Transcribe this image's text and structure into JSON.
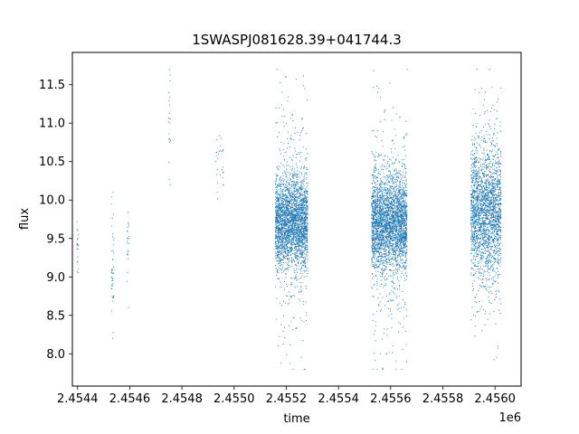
{
  "chart_data": {
    "type": "scatter",
    "title": "1SWASPJ081628.39+041744.3",
    "xlabel": "time",
    "ylabel": "flux",
    "x_offset_label": "1e6",
    "xlim": [
      2454380,
      2456100
    ],
    "ylim": [
      7.58,
      11.92
    ],
    "x_ticks": [
      2454400,
      2454600,
      2454800,
      2455000,
      2455200,
      2455400,
      2455600,
      2455800,
      2456000
    ],
    "x_tick_labels": [
      "2.4544",
      "2.4546",
      "2.4548",
      "2.4550",
      "2.4552",
      "2.4554",
      "2.4556",
      "2.4558",
      "2.4560"
    ],
    "y_ticks": [
      8.0,
      8.5,
      9.0,
      9.5,
      10.0,
      10.5,
      11.0,
      11.5
    ],
    "y_tick_labels": [
      "8.0",
      "8.5",
      "9.0",
      "9.5",
      "10.0",
      "10.5",
      "11.0",
      "11.5"
    ],
    "grid": false,
    "legend": "none",
    "series": [
      {
        "color": "#1f77b4",
        "x": [
          2454400,
          2454400,
          2454401,
          2454402,
          2454530,
          2454531,
          2454532,
          2454533,
          2454534,
          2454535,
          2454536,
          2454540,
          2454590,
          2454592,
          2454595,
          2454750,
          2454752,
          2454755,
          2454930,
          2454935,
          2454950,
          2455160,
          2455165,
          2455170,
          2455175,
          2455180,
          2455185,
          2455190,
          2455195,
          2455200,
          2455210,
          2455220,
          2455230,
          2455240,
          2455250,
          2455260,
          2455270,
          2455280,
          2455160,
          2455170,
          2455180,
          2455190,
          2455200,
          2455210,
          2455220,
          2455230,
          2455240,
          2455250,
          2455260,
          2455270,
          2455280,
          2455165,
          2455175,
          2455185,
          2455195,
          2455205,
          2455215,
          2455225,
          2455235,
          2455245,
          2455255,
          2455265,
          2455275,
          2455530,
          2455540,
          2455550,
          2455560,
          2455570,
          2455580,
          2455590,
          2455600,
          2455610,
          2455620,
          2455630,
          2455640,
          2455650,
          2455660,
          2455530,
          2455540,
          2455550,
          2455560,
          2455570,
          2455580,
          2455590,
          2455600,
          2455610,
          2455620,
          2455630,
          2455640,
          2455650,
          2455535,
          2455545,
          2455555,
          2455565,
          2455575,
          2455585,
          2455595,
          2455605,
          2455615,
          2455625,
          2455635,
          2455645,
          2455910,
          2455920,
          2455930,
          2455940,
          2455950,
          2455960,
          2455970,
          2455980,
          2455990,
          2456000,
          2456010,
          2455910,
          2455920,
          2455930,
          2455940,
          2455950,
          2455960,
          2455970,
          2455980,
          2455990,
          2456000,
          2456010,
          2455915,
          2455925,
          2455935,
          2455945,
          2455955,
          2455965,
          2455975,
          2455985,
          2455995,
          2456005
        ],
        "y": [
          9.6,
          9.2,
          9.5,
          9.1,
          9.0,
          9.1,
          8.95,
          9.05,
          9.1,
          8.2,
          10.1,
          9.5,
          9.6,
          9.3,
          8.6,
          11.4,
          10.8,
          10.2,
          10.5,
          10.1,
          10.8,
          9.6,
          9.9,
          9.7,
          9.4,
          10.0,
          9.8,
          9.5,
          9.7,
          9.9,
          9.6,
          9.8,
          9.5,
          9.7,
          9.6,
          9.9,
          9.7,
          9.6,
          11.0,
          8.1,
          10.6,
          8.5,
          11.6,
          9.2,
          10.4,
          9.1,
          10.3,
          8.8,
          10.9,
          9.3,
          11.3,
          9.8,
          9.6,
          9.9,
          9.7,
          9.5,
          9.8,
          9.6,
          9.7,
          9.9,
          9.5,
          9.8,
          9.6,
          9.7,
          9.9,
          9.5,
          9.8,
          9.6,
          9.7,
          9.9,
          9.5,
          9.8,
          9.6,
          9.7,
          9.9,
          9.5,
          9.8,
          10.9,
          8.3,
          11.4,
          8.0,
          10.7,
          9.1,
          10.5,
          8.7,
          11.2,
          7.9,
          10.3,
          9.0,
          10.8,
          9.6,
          9.9,
          9.7,
          9.5,
          9.8,
          9.6,
          9.7,
          9.9,
          9.5,
          9.8,
          9.6,
          9.7,
          10.0,
          9.7,
          10.2,
          9.8,
          10.1,
          9.6,
          10.0,
          9.9,
          9.4,
          9.2,
          9.5,
          9.6,
          10.6,
          9.3,
          11.4,
          8.3,
          10.8,
          9.4,
          10.4,
          8.9,
          10.7,
          8.1,
          10.1,
          9.8,
          9.9,
          10.1,
          9.7,
          10.0,
          9.8,
          9.5,
          9.1,
          9.3
        ]
      }
    ],
    "clusters": [
      {
        "x_center": 2454400,
        "x_spread": 3,
        "y_center": 9.4,
        "y_sd": 0.2,
        "count": 16
      },
      {
        "x_center": 2454534,
        "x_spread": 5,
        "y_center": 9.05,
        "y_sd": 0.35,
        "count": 40
      },
      {
        "x_center": 2454593,
        "x_spread": 4,
        "y_center": 9.4,
        "y_sd": 0.25,
        "count": 20
      },
      {
        "x_center": 2454752,
        "x_spread": 4,
        "y_center": 10.9,
        "y_sd": 0.35,
        "count": 18
      },
      {
        "x_center": 2454945,
        "x_spread": 15,
        "y_center": 10.45,
        "y_sd": 0.3,
        "count": 25
      },
      {
        "x_center": 2455220,
        "x_spread": 62,
        "y_center": 9.72,
        "y_sd": 0.28,
        "count": 2600
      },
      {
        "x_center": 2455220,
        "x_spread": 62,
        "y_center": 9.72,
        "y_sd": 0.75,
        "count": 450
      },
      {
        "x_center": 2455595,
        "x_spread": 68,
        "y_center": 9.7,
        "y_sd": 0.3,
        "count": 2800
      },
      {
        "x_center": 2455595,
        "x_spread": 68,
        "y_center": 9.7,
        "y_sd": 0.8,
        "count": 500
      },
      {
        "x_center": 2455965,
        "x_spread": 58,
        "y_center": 9.85,
        "y_sd": 0.38,
        "count": 2000
      },
      {
        "x_center": 2455965,
        "x_spread": 58,
        "y_center": 9.85,
        "y_sd": 0.75,
        "count": 400
      }
    ]
  }
}
